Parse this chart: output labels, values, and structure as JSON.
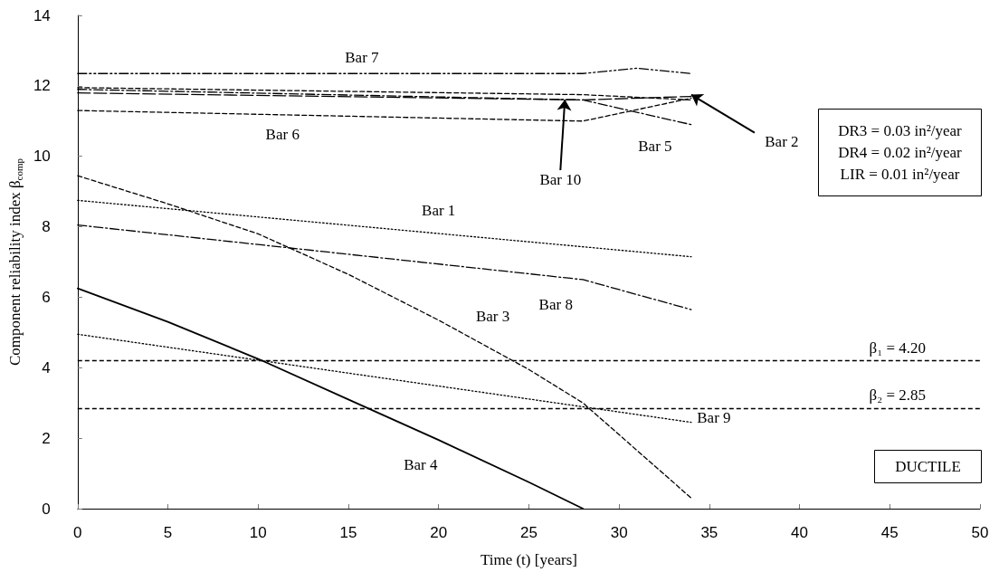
{
  "chart_data": {
    "type": "line",
    "xlabel": "Time (t) [years]",
    "ylabel": "Component reliability index β$_{comp}$",
    "xlim": [
      0,
      50
    ],
    "xticks": [
      0,
      5,
      10,
      15,
      20,
      25,
      30,
      35,
      40,
      45,
      50
    ],
    "ylim": [
      0,
      14
    ],
    "yticks": [
      0,
      2,
      4,
      6,
      8,
      10,
      12,
      14
    ],
    "grid": false,
    "marker": "none",
    "series": [
      {
        "color": "#000000",
        "line_style": "dotted",
        "x": [
          0,
          34
        ],
        "values": [
          8.75,
          7.15
        ]
      },
      {
        "color": "#000000",
        "line_style": "dashed",
        "x": [
          0,
          28,
          34
        ],
        "values": [
          11.95,
          11.75,
          11.6
        ]
      },
      {
        "color": "#000000",
        "line_style": "dashed",
        "x": [
          0,
          5,
          10,
          15,
          20,
          25,
          28,
          34
        ],
        "values": [
          9.45,
          8.65,
          7.8,
          6.65,
          5.35,
          3.95,
          3.0,
          0.3
        ]
      },
      {
        "color": "#000000",
        "line_style": "solid",
        "x": [
          0,
          5,
          10,
          15,
          20,
          25,
          28
        ],
        "values": [
          6.25,
          5.3,
          4.25,
          3.1,
          1.95,
          0.75,
          0
        ]
      },
      {
        "color": "#000000",
        "line_style": "dashdot",
        "x": [
          0,
          28,
          34
        ],
        "values": [
          11.9,
          11.6,
          10.9
        ]
      },
      {
        "color": "#000000",
        "line_style": "dashed",
        "x": [
          0,
          28,
          34
        ],
        "values": [
          11.3,
          11.0,
          11.65
        ]
      },
      {
        "color": "#000000",
        "line_style": "dashdotdot",
        "x": [
          0,
          28,
          31,
          34
        ],
        "values": [
          12.35,
          12.35,
          12.5,
          12.35
        ]
      },
      {
        "color": "#000000",
        "line_style": "dashdot",
        "x": [
          0,
          28,
          34
        ],
        "values": [
          8.05,
          6.5,
          5.65
        ]
      },
      {
        "color": "#000000",
        "line_style": "dotted",
        "x": [
          0,
          34
        ],
        "values": [
          4.95,
          2.45
        ]
      },
      {
        "color": "#000000",
        "line_style": "longdash",
        "x": [
          0,
          28,
          34
        ],
        "values": [
          11.8,
          11.6,
          11.7
        ]
      }
    ],
    "ref_lines": [
      {
        "axis": "y",
        "value": 4.2,
        "label": "β₁ = 4.20",
        "color": "#000000",
        "line_style": "dashed"
      },
      {
        "axis": "y",
        "value": 2.85,
        "label": "β₂ = 2.85",
        "color": "#000000",
        "line_style": "dashed"
      }
    ],
    "annotations": [
      {
        "text": "Bar 7",
        "x": 16,
        "y": 12.35
      },
      {
        "text": "Bar 6",
        "x": 10,
        "y": 11.2
      },
      {
        "text": "Bar 10",
        "x": 27,
        "y": 11.61
      },
      {
        "text": "Bar 5",
        "x": 34,
        "y": 10.9
      },
      {
        "text": "Bar 2",
        "x": 34,
        "y": 11.75
      },
      {
        "text": "Bar 1",
        "x": 20,
        "y": 7.9
      },
      {
        "text": "Bar 8",
        "x": 28,
        "y": 6.5
      },
      {
        "text": "Bar 3",
        "x": 22,
        "y": 4.85
      },
      {
        "text": "Bar 9",
        "x": 34,
        "y": 2.45
      },
      {
        "text": "Bar 4",
        "x": 18,
        "y": 2.4
      },
      "DR3 = 0.03 in²/year",
      "DR4 = 0.02 in²/year",
      "LIR = 0.01 in²/year",
      "DUCTILE"
    ]
  }
}
